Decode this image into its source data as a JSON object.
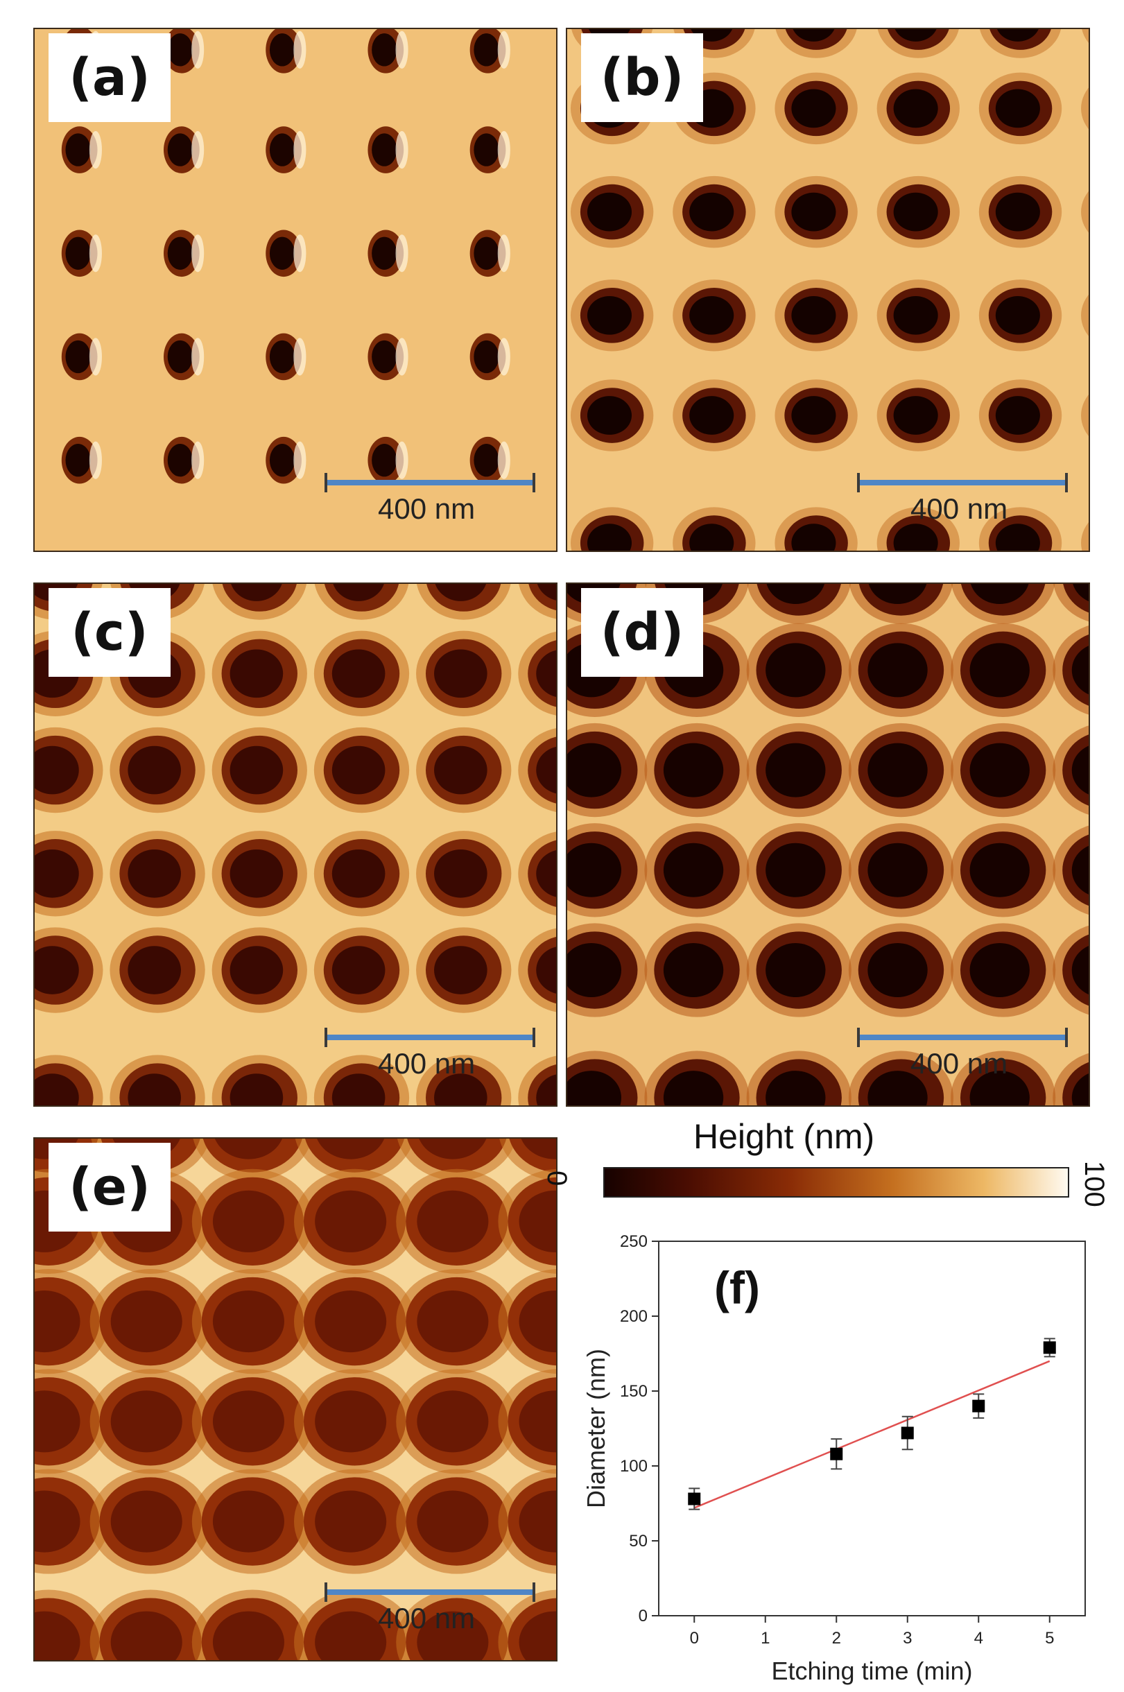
{
  "panels": [
    {
      "id": "a",
      "label": "(a)",
      "scale_bar": "400 nm"
    },
    {
      "id": "b",
      "label": "(b)",
      "scale_bar": "400 nm"
    },
    {
      "id": "c",
      "label": "(c)",
      "scale_bar": "400 nm"
    },
    {
      "id": "d",
      "label": "(d)",
      "scale_bar": "400 nm"
    },
    {
      "id": "e",
      "label": "(e)",
      "scale_bar": "400 nm"
    }
  ],
  "colorbar": {
    "title": "Height (nm)",
    "min_label": "0",
    "max_label": "100",
    "colors": [
      "#170200",
      "#4a0d02",
      "#8a2c06",
      "#c46f1f",
      "#edb865",
      "#fffaf0"
    ]
  },
  "chart_data": {
    "type": "scatter",
    "panel_label": "(f)",
    "xlabel": "Etching time (min)",
    "ylabel": "Diameter (nm)",
    "xlim": [
      -0.5,
      5.5
    ],
    "ylim": [
      0,
      250
    ],
    "xticks": [
      0,
      1,
      2,
      3,
      4,
      5
    ],
    "yticks": [
      0,
      50,
      100,
      150,
      200,
      250
    ],
    "points": [
      {
        "x": 0,
        "y": 78,
        "err": 7
      },
      {
        "x": 2,
        "y": 108,
        "err": 10
      },
      {
        "x": 3,
        "y": 122,
        "err": 11
      },
      {
        "x": 4,
        "y": 140,
        "err": 8
      },
      {
        "x": 5,
        "y": 179,
        "err": 6
      }
    ],
    "fit_line": {
      "x": [
        0,
        5
      ],
      "y": [
        72,
        170
      ],
      "color": "#e05050"
    },
    "marker_color": "#000000"
  }
}
